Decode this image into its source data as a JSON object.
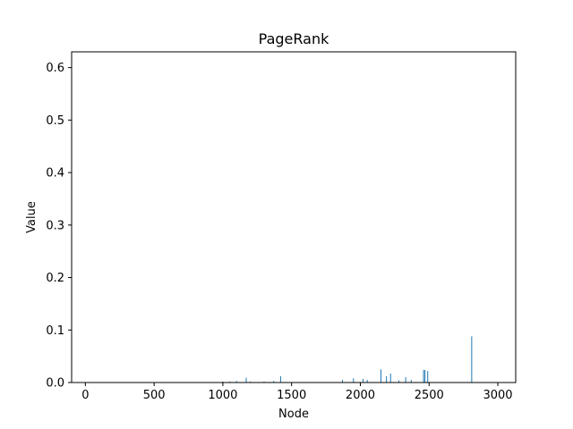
{
  "chart_data": {
    "type": "bar",
    "title": "PageRank",
    "xlabel": "Node",
    "ylabel": "Value",
    "xlim": [
      -100,
      3130
    ],
    "ylim": [
      0,
      0.63
    ],
    "xticks": [
      0,
      500,
      1000,
      1500,
      2000,
      2500,
      3000
    ],
    "yticks": [
      0.0,
      0.1,
      0.2,
      0.3,
      0.4,
      0.5,
      0.6
    ],
    "xtick_labels": [
      "0",
      "500",
      "1000",
      "1500",
      "2000",
      "2500",
      "3000"
    ],
    "ytick_labels": [
      "0.0",
      "0.1",
      "0.2",
      "0.3",
      "0.4",
      "0.5",
      "0.6"
    ],
    "grid": false,
    "bar_color": "#1f77b4",
    "x": [
      150,
      250,
      600,
      650,
      750,
      1000,
      1050,
      1100,
      1170,
      1200,
      1300,
      1370,
      1420,
      1870,
      1950,
      2020,
      2050,
      2150,
      2190,
      2220,
      2280,
      2330,
      2370,
      2460,
      2470,
      2490,
      2810
    ],
    "values": [
      0.001,
      0.001,
      0.001,
      0.001,
      0.001,
      0.002,
      0.002,
      0.003,
      0.009,
      0.002,
      0.002,
      0.003,
      0.012,
      0.005,
      0.008,
      0.007,
      0.005,
      0.025,
      0.012,
      0.017,
      0.004,
      0.01,
      0.005,
      0.024,
      0.024,
      0.022,
      0.088
    ]
  }
}
